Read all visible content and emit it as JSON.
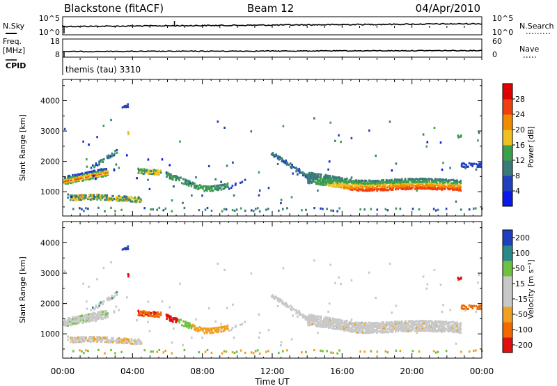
{
  "header": {
    "title": "Blackstone (fitACF)",
    "beam": "Beam 12",
    "date": "04/Apr/2010"
  },
  "nsky_panel": {
    "label": "N.Sky",
    "left_ticks": [
      "10^5",
      "10^0"
    ],
    "right_ticks": [
      "10^5",
      "10^0"
    ],
    "right_label": "N.Search"
  },
  "freq_panel": {
    "label_line1": "Freq.",
    "label_line2": "[MHz]",
    "left_ticks": [
      "18",
      "8"
    ],
    "right_ticks": [
      "60",
      "0"
    ],
    "right_label": "Nave"
  },
  "cpid_panel": {
    "label": "CPID",
    "mode_text": "themis (tau) 3310"
  },
  "chart_data": [
    {
      "type": "heatmap",
      "name": "power-panel",
      "ylabel": "Slant Range [km]",
      "yticks": [
        "1000",
        "2000",
        "3000",
        "4000"
      ],
      "ytick_values": [
        1000,
        2000,
        3000,
        4000
      ],
      "ylim": [
        200,
        4700
      ],
      "xlim": [
        0,
        24
      ],
      "colorbar": {
        "label": "Power [dB]",
        "ticks": [
          "4",
          "8",
          "12",
          "16",
          "20",
          "24",
          "28"
        ],
        "tick_values": [
          4,
          8,
          12,
          16,
          20,
          24,
          28
        ],
        "range": [
          0,
          32
        ],
        "colors": [
          "#0a1ae8",
          "#2040c0",
          "#3a7a7a",
          "#3aa04a",
          "#f0c020",
          "#f08a00",
          "#f04010",
          "#e00000"
        ]
      }
    },
    {
      "type": "heatmap",
      "name": "velocity-panel",
      "ylabel": "Slant Range [km]",
      "yticks": [
        "1000",
        "2000",
        "3000",
        "4000"
      ],
      "ytick_values": [
        1000,
        2000,
        3000,
        4000
      ],
      "ylim": [
        200,
        4700
      ],
      "xlim": [
        0,
        24
      ],
      "colorbar": {
        "label": "Velocity [m s⁻¹]",
        "ticks": [
          "200",
          "100",
          "50",
          "15",
          "-15",
          "-50",
          "-100",
          "-200"
        ],
        "colors": [
          "#2040c0",
          "#2a8a8a",
          "#70c040",
          "#c8c8c8",
          "#c8c8c8",
          "#f0a020",
          "#f06a00",
          "#e01010"
        ]
      }
    }
  ],
  "time_axis": {
    "label": "Time UT",
    "ticks": [
      "00:00",
      "04:00",
      "08:00",
      "12:00",
      "16:00",
      "20:00",
      "00:00"
    ],
    "tick_hours": [
      0,
      4,
      8,
      12,
      16,
      20,
      24
    ]
  }
}
